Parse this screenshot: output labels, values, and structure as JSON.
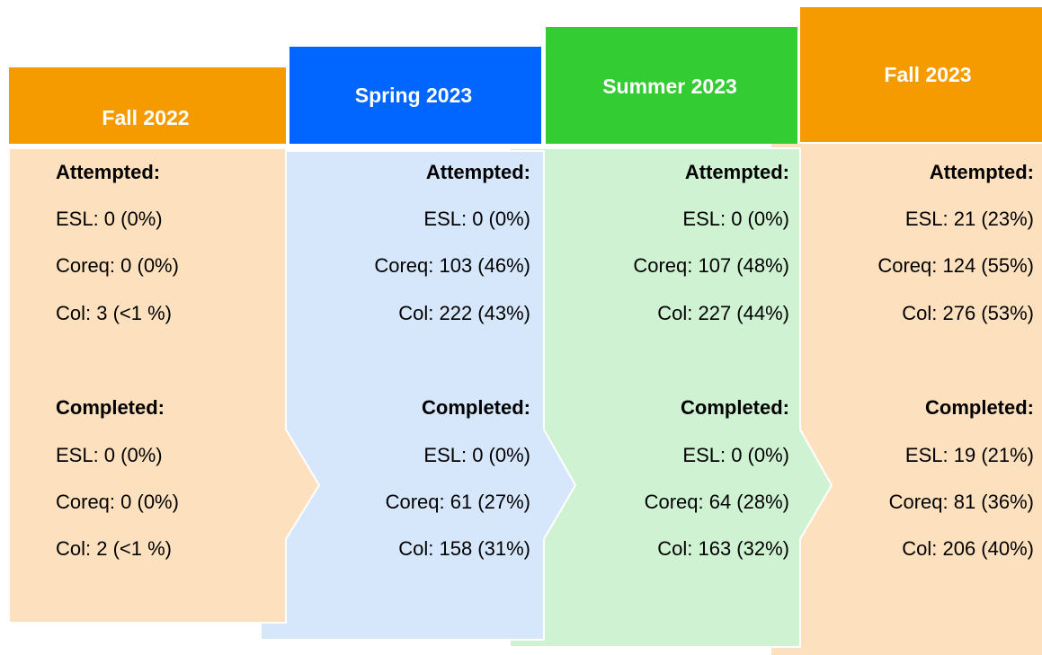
{
  "columns": [
    {
      "header": "Fall 2022",
      "attempted_label": "Attempted:",
      "attempted": [
        "ESL: 0 (0%)",
        "Coreq: 0 (0%)",
        "Col: 3 (<1 %)"
      ],
      "completed_label": "Completed:",
      "completed": [
        "ESL: 0 (0%)",
        "Coreq: 0 (0%)",
        "Col: 2 (<1 %)"
      ]
    },
    {
      "header": "Spring 2023",
      "attempted_label": "Attempted:",
      "attempted": [
        "ESL: 0 (0%)",
        "Coreq: 103 (46%)",
        "Col: 222 (43%)"
      ],
      "completed_label": "Completed:",
      "completed": [
        "ESL: 0 (0%)",
        "Coreq: 61 (27%)",
        "Col: 158 (31%)"
      ]
    },
    {
      "header": "Summer 2023",
      "attempted_label": "Attempted:",
      "attempted": [
        "ESL: 0 (0%)",
        "Coreq: 107 (48%)",
        "Col: 227 (44%)"
      ],
      "completed_label": "Completed:",
      "completed": [
        "ESL: 0 (0%)",
        "Coreq: 64 (28%)",
        "Col: 163 (32%)"
      ]
    },
    {
      "header": "Fall 2023",
      "attempted_label": "Attempted:",
      "attempted": [
        "ESL: 21 (23%)",
        "Coreq: 124 (55%)",
        "Col: 276 (53%)"
      ],
      "completed_label": "Completed:",
      "completed": [
        "ESL: 19 (21%)",
        "Coreq: 81 (36%)",
        "Col: 206 (40%)"
      ]
    }
  ]
}
